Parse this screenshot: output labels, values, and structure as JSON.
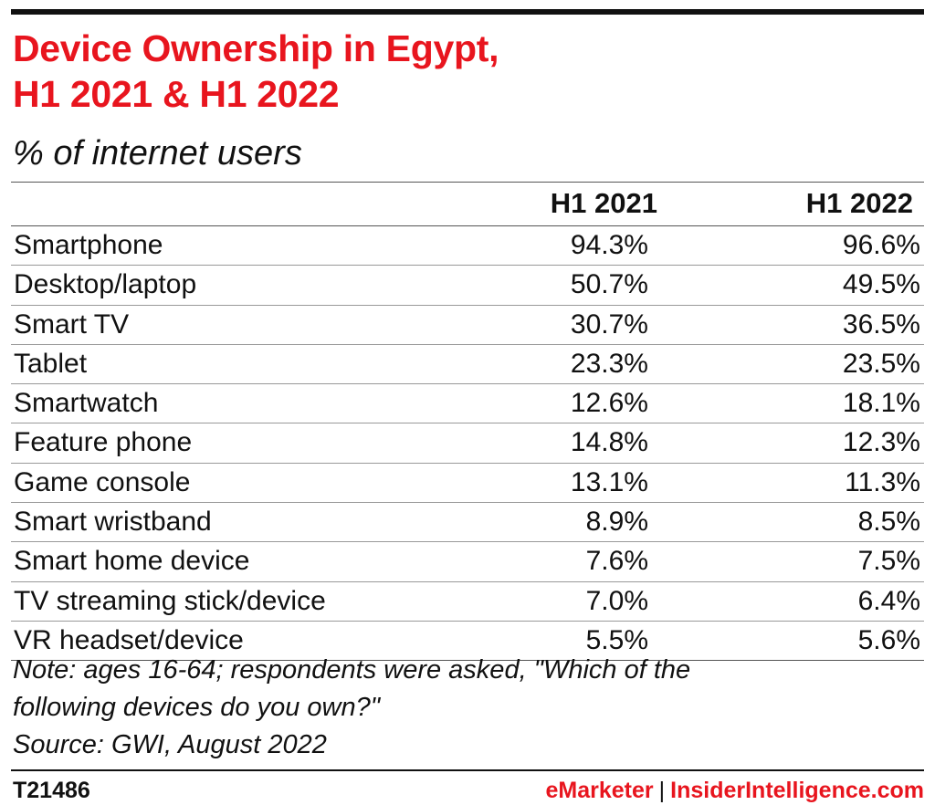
{
  "title_line1": "Device Ownership in Egypt,",
  "title_line2": "H1 2021 & H1 2022",
  "subtitle": "% of internet users",
  "chart_data": {
    "type": "table",
    "columns": [
      "H1 2021",
      "H1 2022"
    ],
    "rows": [
      {
        "label": "Smartphone",
        "h1_2021": "94.3%",
        "h1_2022": "96.6%"
      },
      {
        "label": "Desktop/laptop",
        "h1_2021": "50.7%",
        "h1_2022": "49.5%"
      },
      {
        "label": "Smart TV",
        "h1_2021": "30.7%",
        "h1_2022": "36.5%"
      },
      {
        "label": "Tablet",
        "h1_2021": "23.3%",
        "h1_2022": "23.5%"
      },
      {
        "label": "Smartwatch",
        "h1_2021": "12.6%",
        "h1_2022": "18.1%"
      },
      {
        "label": "Feature phone",
        "h1_2021": "14.8%",
        "h1_2022": "12.3%"
      },
      {
        "label": "Game console",
        "h1_2021": "13.1%",
        "h1_2022": "11.3%"
      },
      {
        "label": "Smart wristband",
        "h1_2021": "8.9%",
        "h1_2022": "8.5%"
      },
      {
        "label": "Smart home device",
        "h1_2021": "7.6%",
        "h1_2022": "7.5%"
      },
      {
        "label": "TV streaming stick/device",
        "h1_2021": "7.0%",
        "h1_2022": "6.4%"
      },
      {
        "label": "VR headset/device",
        "h1_2021": "5.5%",
        "h1_2022": "5.6%"
      }
    ]
  },
  "note_line1": "Note: ages 16-64; respondents were asked, \"Which of the",
  "note_line2": "following devices do you own?\"",
  "source": "Source: GWI, August 2022",
  "footer_id": "T21486",
  "brand_emarketer": "eMarketer",
  "brand_separator": "|",
  "brand_insider": "InsiderIntelligence.com",
  "colors": {
    "accent": "#e8151e",
    "text": "#111111"
  }
}
